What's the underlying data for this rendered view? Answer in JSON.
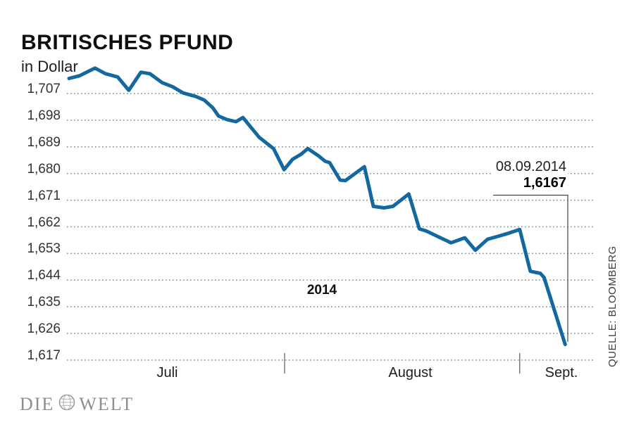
{
  "header": {
    "title": "BRITISCHES PFUND",
    "subtitle": "in Dollar"
  },
  "annotation": {
    "date": "08.09.2014",
    "value": "1,6167",
    "year": "2014"
  },
  "source": "QUELLE: BLOOMBERG",
  "logo": {
    "left": "DIE",
    "right": "WELT",
    "globe": "globe-icon"
  },
  "colors": {
    "line": "#12689f",
    "grid": "#8a8a8a",
    "tick": "#666666",
    "bracket": "#444444",
    "title_text": "#0e0e0e",
    "axis_text": "#323232",
    "logo_gray": "#8e8e8e"
  },
  "chart_data": {
    "type": "line",
    "title": "BRITISCHES PFUND",
    "ylabel": "in Dollar",
    "ylim": [
      1.617,
      1.707
    ],
    "grid": "dotted-horizontal",
    "y_ticks": [
      {
        "label": "1,707",
        "value": 1.707
      },
      {
        "label": "1,698",
        "value": 1.698
      },
      {
        "label": "1,689",
        "value": 1.689
      },
      {
        "label": "1,680",
        "value": 1.68
      },
      {
        "label": "1,671",
        "value": 1.671
      },
      {
        "label": "1,662",
        "value": 1.662
      },
      {
        "label": "1,653",
        "value": 1.653
      },
      {
        "label": "1,644",
        "value": 1.644
      },
      {
        "label": "1,635",
        "value": 1.635
      },
      {
        "label": "1,626",
        "value": 1.626
      },
      {
        "label": "1,617",
        "value": 1.617
      }
    ],
    "x_axis": {
      "labels": [
        {
          "label": "Juli",
          "center": 0.19
        },
        {
          "label": "August",
          "center": 0.65
        },
        {
          "label": "Sept.",
          "center": 0.936
        }
      ],
      "boundaries": [
        0.412,
        0.857
      ]
    },
    "series": [
      {
        "name": "Britisches Pfund in Dollar",
        "points": [
          [
            0.004,
            1.7121
          ],
          [
            0.024,
            1.713
          ],
          [
            0.053,
            1.7156
          ],
          [
            0.073,
            1.7137
          ],
          [
            0.096,
            1.7126
          ],
          [
            0.117,
            1.7081
          ],
          [
            0.14,
            1.7142
          ],
          [
            0.157,
            1.7137
          ],
          [
            0.18,
            1.7107
          ],
          [
            0.2,
            1.7093
          ],
          [
            0.22,
            1.7072
          ],
          [
            0.244,
            1.706
          ],
          [
            0.26,
            1.7048
          ],
          [
            0.276,
            1.7022
          ],
          [
            0.287,
            1.6994
          ],
          [
            0.303,
            1.6982
          ],
          [
            0.32,
            1.6975
          ],
          [
            0.333,
            1.6989
          ],
          [
            0.364,
            1.6922
          ],
          [
            0.391,
            1.6884
          ],
          [
            0.411,
            1.6813
          ],
          [
            0.427,
            1.6848
          ],
          [
            0.443,
            1.6865
          ],
          [
            0.456,
            1.6884
          ],
          [
            0.476,
            1.686
          ],
          [
            0.489,
            1.6841
          ],
          [
            0.497,
            1.6837
          ],
          [
            0.517,
            1.6778
          ],
          [
            0.527,
            1.6776
          ],
          [
            0.563,
            1.6823
          ],
          [
            0.58,
            1.6689
          ],
          [
            0.6,
            1.6684
          ],
          [
            0.617,
            1.6689
          ],
          [
            0.647,
            1.6731
          ],
          [
            0.667,
            1.6613
          ],
          [
            0.68,
            1.6606
          ],
          [
            0.707,
            1.6583
          ],
          [
            0.727,
            1.6566
          ],
          [
            0.753,
            1.6583
          ],
          [
            0.773,
            1.6541
          ],
          [
            0.796,
            1.6578
          ],
          [
            0.816,
            1.6588
          ],
          [
            0.837,
            1.6599
          ],
          [
            0.857,
            1.6611
          ],
          [
            0.877,
            1.647
          ],
          [
            0.896,
            1.6463
          ],
          [
            0.903,
            1.6449
          ],
          [
            0.943,
            1.6223
          ]
        ]
      }
    ],
    "last_point": {
      "date": "08.09.2014",
      "value": 1.6167
    }
  }
}
